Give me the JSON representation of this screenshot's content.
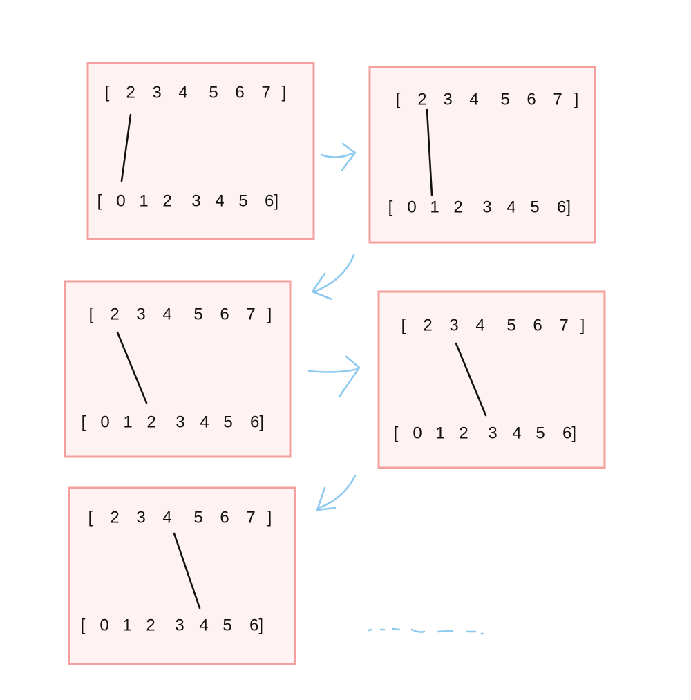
{
  "colors": {
    "frame_fill": "#fff2f2",
    "frame_stroke": "#f4a09e",
    "ink": "#111111",
    "arrow": "#8ec9ef"
  },
  "steps": [
    {
      "top_row": [
        "[",
        "2",
        "3",
        "4",
        "5",
        "6",
        "7",
        "]"
      ],
      "bottom_row": [
        "[",
        "0",
        "1",
        "2",
        "3",
        "4",
        "5",
        "6]"
      ],
      "link": {
        "top_value": "2",
        "bottom_value": "0"
      }
    },
    {
      "top_row": [
        "[",
        "2",
        "3",
        "4",
        "5",
        "6",
        "7",
        "]"
      ],
      "bottom_row": [
        "[",
        "0",
        "1",
        "2",
        "3",
        "4",
        "5",
        "6]"
      ],
      "link": {
        "top_value": "2",
        "bottom_value": "1"
      }
    },
    {
      "top_row": [
        "[",
        "2",
        "3",
        "4",
        "5",
        "6",
        "7",
        "]"
      ],
      "bottom_row": [
        "[",
        "0",
        "1",
        "2",
        "3",
        "4",
        "5",
        "6]"
      ],
      "link": {
        "top_value": "2",
        "bottom_value": "2"
      }
    },
    {
      "top_row": [
        "[",
        "2",
        "3",
        "4",
        "5",
        "6",
        "7",
        "]"
      ],
      "bottom_row": [
        "[",
        "0",
        "1",
        "2",
        "3",
        "4",
        "5",
        "6]"
      ],
      "link": {
        "top_value": "3",
        "bottom_value": "3"
      }
    },
    {
      "top_row": [
        "[",
        "2",
        "3",
        "4",
        "5",
        "6",
        "7",
        "]"
      ],
      "bottom_row": [
        "[",
        "0",
        "1",
        "2",
        "3",
        "4",
        "5",
        "6]"
      ],
      "link": {
        "top_value": "4",
        "bottom_value": "4"
      }
    }
  ]
}
